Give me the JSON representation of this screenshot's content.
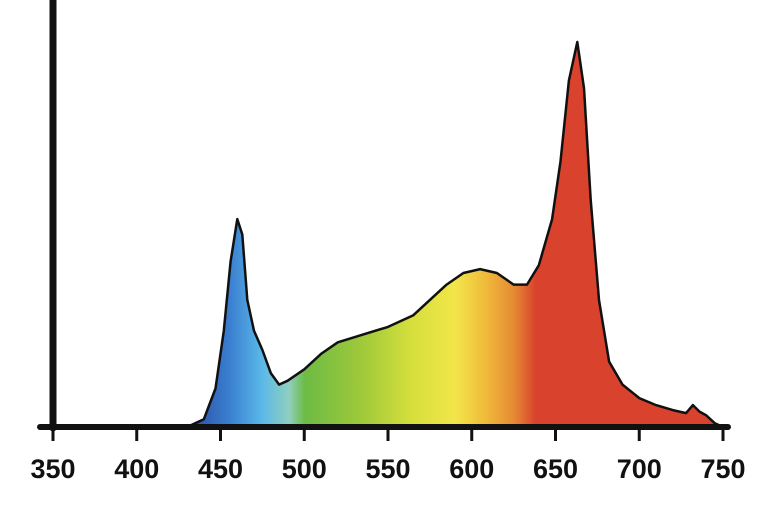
{
  "chart_data": {
    "type": "area",
    "x": [
      430,
      440,
      447,
      452,
      456,
      460,
      463,
      466,
      470,
      475,
      480,
      485,
      490,
      500,
      510,
      520,
      535,
      550,
      565,
      575,
      585,
      595,
      605,
      615,
      625,
      633,
      640,
      648,
      653,
      658,
      663,
      667,
      671,
      676,
      682,
      690,
      700,
      710,
      720,
      728,
      732,
      736,
      740,
      745,
      750
    ],
    "values": [
      0,
      0.02,
      0.1,
      0.25,
      0.43,
      0.54,
      0.5,
      0.33,
      0.25,
      0.2,
      0.14,
      0.11,
      0.12,
      0.15,
      0.19,
      0.22,
      0.24,
      0.26,
      0.29,
      0.33,
      0.37,
      0.4,
      0.41,
      0.4,
      0.37,
      0.37,
      0.42,
      0.54,
      0.69,
      0.9,
      1.0,
      0.88,
      0.59,
      0.33,
      0.17,
      0.11,
      0.075,
      0.057,
      0.044,
      0.036,
      0.057,
      0.04,
      0.03,
      0.01,
      0
    ],
    "xlim": [
      350,
      750
    ],
    "ylim": [
      0,
      1
    ],
    "xticks": [
      350,
      400,
      450,
      500,
      550,
      600,
      650,
      700,
      750
    ]
  }
}
